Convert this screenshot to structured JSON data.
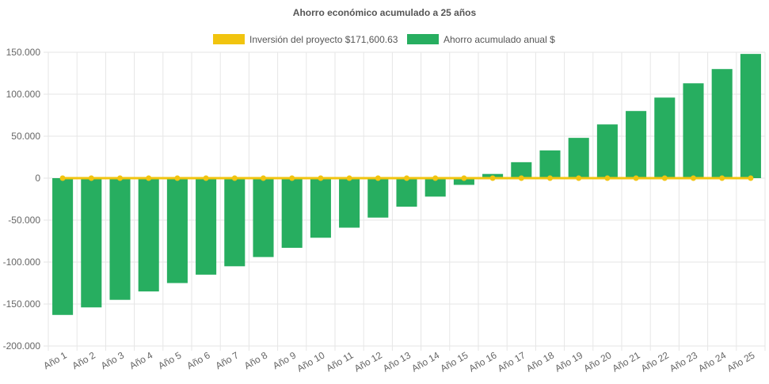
{
  "chart_data": {
    "type": "bar",
    "title": "Ahorro económico acumulado a 25 años",
    "categories": [
      "Año 1",
      "Año 2",
      "Año 3",
      "Año 4",
      "Año 5",
      "Año 6",
      "Año 7",
      "Año 8",
      "Año 9",
      "Año 10",
      "Año 11",
      "Año 12",
      "Año 13",
      "Año 14",
      "Año 15",
      "Año 16",
      "Año 17",
      "Año 18",
      "Año 19",
      "Año 20",
      "Año 21",
      "Año 22",
      "Año 23",
      "Año 24",
      "Año 25"
    ],
    "ylim": [
      -200000,
      150000
    ],
    "yticks": [
      150000,
      100000,
      50000,
      0,
      -50000,
      -100000,
      -150000,
      -200000
    ],
    "ytick_labels": [
      "150.000",
      "100.000",
      "50.000",
      "0",
      "-50.000",
      "-100.000",
      "-150.000",
      "-200.000"
    ],
    "grid": true,
    "legend_position": "top",
    "series": [
      {
        "name": "Inversión del proyecto $171,600.63",
        "kind": "line",
        "color": "#f1c40f",
        "values": [
          0,
          0,
          0,
          0,
          0,
          0,
          0,
          0,
          0,
          0,
          0,
          0,
          0,
          0,
          0,
          0,
          0,
          0,
          0,
          0,
          0,
          0,
          0,
          0,
          0
        ]
      },
      {
        "name": "Ahorro acumulado anual $",
        "kind": "bar",
        "color": "#27ae60",
        "values": [
          -163000,
          -154000,
          -145000,
          -135000,
          -125000,
          -115000,
          -105000,
          -94000,
          -83000,
          -71000,
          -59000,
          -47000,
          -34000,
          -22000,
          -8000,
          5000,
          19000,
          33000,
          48000,
          64000,
          80000,
          96000,
          113000,
          130000,
          148000
        ]
      }
    ]
  }
}
